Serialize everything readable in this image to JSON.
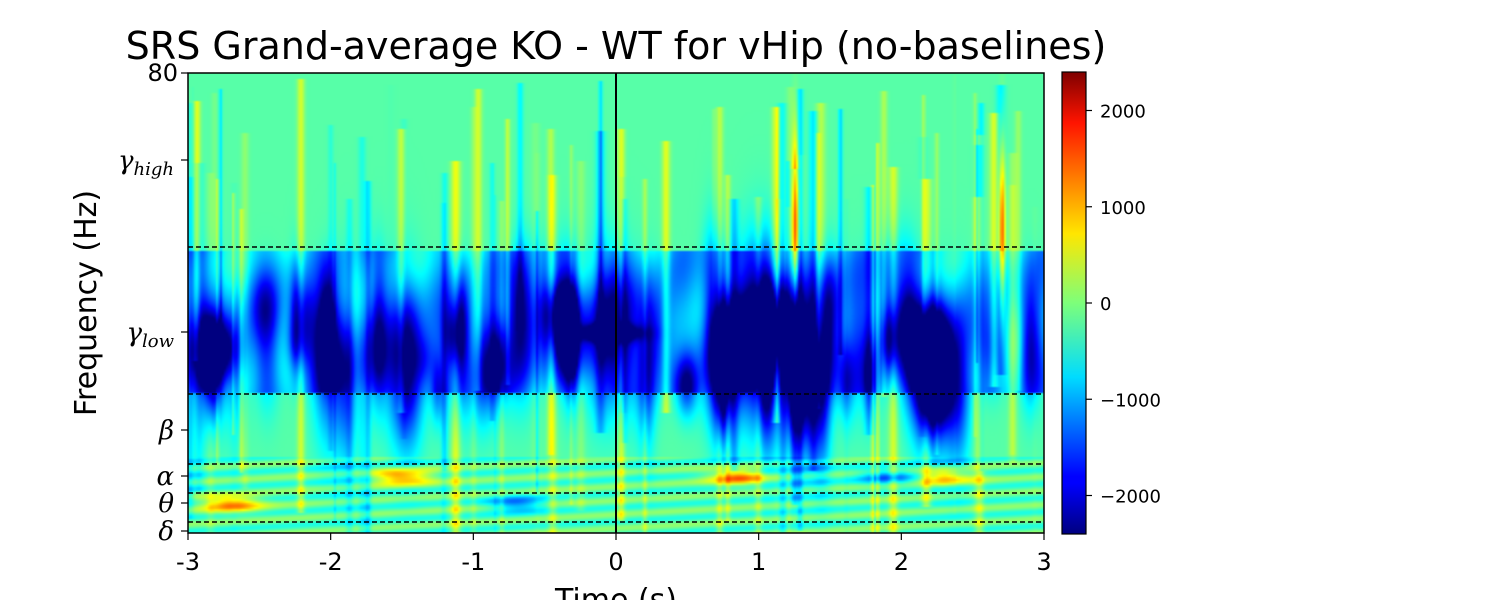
{
  "chart_data": {
    "type": "heatmap",
    "title": "SRS Grand-average KO - WT for vHip (no-baselines)",
    "xlabel": "Time (s)",
    "ylabel": "Frequency (Hz)",
    "xlim": [
      -3,
      3
    ],
    "x_ticks": [
      {
        "value": -3,
        "label": "-3"
      },
      {
        "value": -2,
        "label": "-2"
      },
      {
        "value": -1,
        "label": "-1"
      },
      {
        "value": 0,
        "label": "0"
      },
      {
        "value": 1,
        "label": "1"
      },
      {
        "value": 2,
        "label": "2"
      },
      {
        "value": 3,
        "label": "3"
      }
    ],
    "y_scale": "band-indexed (non-linear)",
    "y_top_label": "80",
    "bands": [
      {
        "symbol": "δ",
        "sub": "",
        "name": "delta"
      },
      {
        "symbol": "θ",
        "sub": "",
        "name": "theta"
      },
      {
        "symbol": "α",
        "sub": "",
        "name": "alpha"
      },
      {
        "symbol": "β",
        "sub": "",
        "name": "beta"
      },
      {
        "symbol": "γ",
        "sub": "low",
        "name": "gamma-low"
      },
      {
        "symbol": "γ",
        "sub": "high",
        "name": "gamma-high"
      }
    ],
    "event_marker_time": 0,
    "colormap": "jet",
    "colorbar": {
      "range": [
        -2400,
        2400
      ],
      "ticks": [
        {
          "value": 2000,
          "label": "2000"
        },
        {
          "value": 1000,
          "label": "1000"
        },
        {
          "value": 0,
          "label": "0"
        },
        {
          "value": -1000,
          "label": "−1000"
        },
        {
          "value": -2000,
          "label": "−2000"
        }
      ]
    },
    "features": [
      {
        "band": "gamma-low",
        "t_range": [
          -3,
          3
        ],
        "value": -1300,
        "note": "broad negative (blue) region across low gamma"
      },
      {
        "band": "gamma-low",
        "t": -0.05,
        "value": -2200,
        "note": "strongest negative near event onset"
      },
      {
        "band": "gamma-high",
        "t": 1.25,
        "value": 2400,
        "note": "positive streak after event"
      },
      {
        "band": "gamma-high",
        "t": 2.7,
        "value": 2200,
        "note": "positive streak"
      },
      {
        "band": "theta",
        "t": -2.7,
        "value": 1600,
        "note": "positive theta before event"
      },
      {
        "band": "alpha",
        "t": -1.5,
        "value": 1800,
        "note": "positive alpha"
      },
      {
        "band": "alpha",
        "t": 0.85,
        "value": 1700,
        "note": "positive alpha after event"
      },
      {
        "band": "alpha",
        "t": 2.3,
        "value": 1600,
        "note": "positive alpha"
      },
      {
        "band": "alpha",
        "t": 1.9,
        "value": -1200,
        "note": "negative alpha"
      },
      {
        "band": "theta",
        "t": -0.7,
        "value": -1200,
        "note": "negative theta"
      }
    ]
  },
  "colors": {
    "event_line": "#000000",
    "band_lines": "#000000"
  }
}
